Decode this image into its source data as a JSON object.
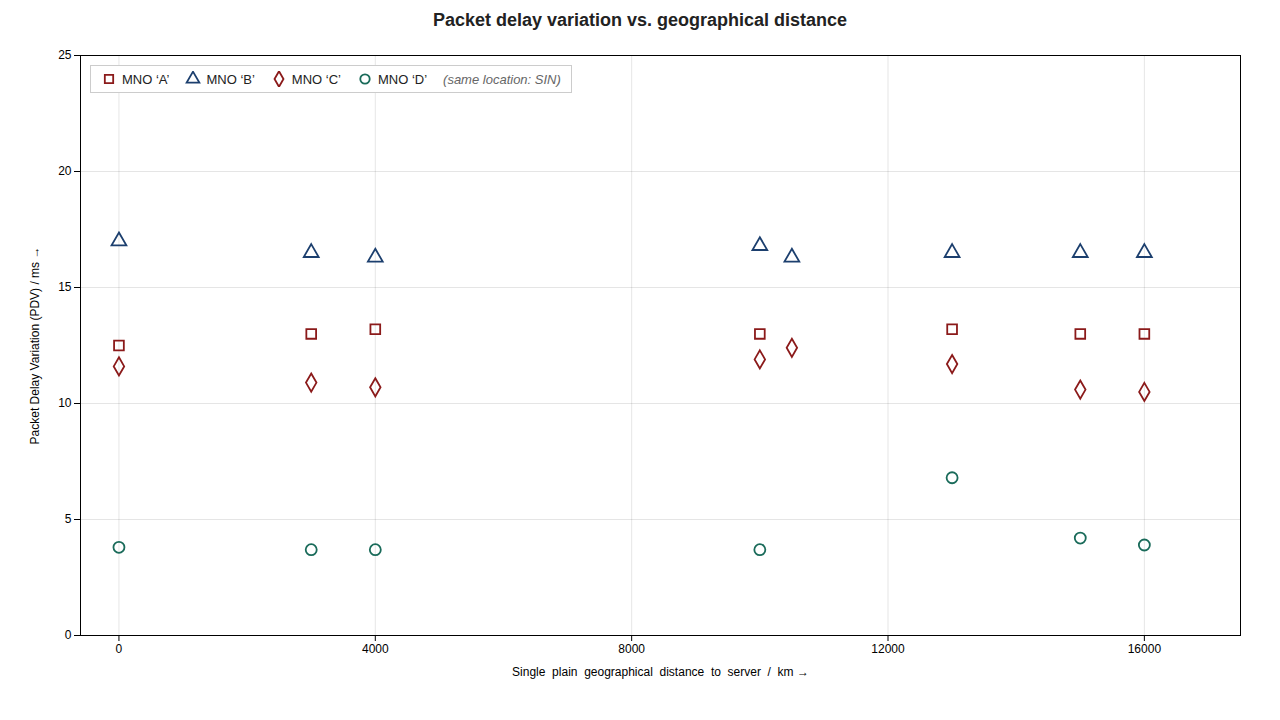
{
  "chart_data": {
    "type": "scatter",
    "title": "Packet delay variation vs. geographical distance",
    "x_label": "Single  plain  geographical  distance  to  server  /  km",
    "y_label": "Packet Delay Variation (PDV) / ms",
    "xlim": [
      -600,
      17500
    ],
    "ylim": [
      0,
      25
    ],
    "xticks": [
      0,
      4000,
      8000,
      12000,
      16000
    ],
    "yticks": [
      0,
      5,
      10,
      15,
      20,
      25
    ],
    "grid": true,
    "legend": "upper left",
    "annotations": [
      "(same location: SIN)"
    ],
    "series": [
      {
        "name": "MNO ‘A’",
        "color": "#8b1a1a",
        "marker": "square",
        "x": [
          0,
          3000,
          4000,
          10000,
          13000,
          15000,
          16000
        ],
        "values": [
          12.5,
          13.0,
          13.2,
          13.0,
          13.2,
          13.0,
          13.0
        ]
      },
      {
        "name": "MNO ‘B’",
        "color": "#1c3f6e",
        "marker": "triangle",
        "x": [
          0,
          3000,
          4000,
          10000,
          10500,
          13000,
          15000,
          16000
        ],
        "values": [
          17.0,
          16.5,
          16.3,
          16.8,
          16.3,
          16.5,
          16.5,
          16.5
        ]
      },
      {
        "name": "MNO ‘C’",
        "color": "#8b1a1a",
        "marker": "diamond",
        "x": [
          0,
          3000,
          4000,
          10000,
          10500,
          13000,
          15000,
          16000
        ],
        "values": [
          11.6,
          10.9,
          10.7,
          11.9,
          12.4,
          11.7,
          10.6,
          10.5
        ]
      },
      {
        "name": "MNO ‘D’",
        "color": "#1a6b5a",
        "marker": "circle",
        "x": [
          0,
          3000,
          4000,
          10000,
          13000,
          15000,
          16000
        ],
        "values": [
          3.8,
          3.7,
          3.7,
          3.7,
          6.8,
          4.2,
          3.9
        ]
      }
    ]
  }
}
